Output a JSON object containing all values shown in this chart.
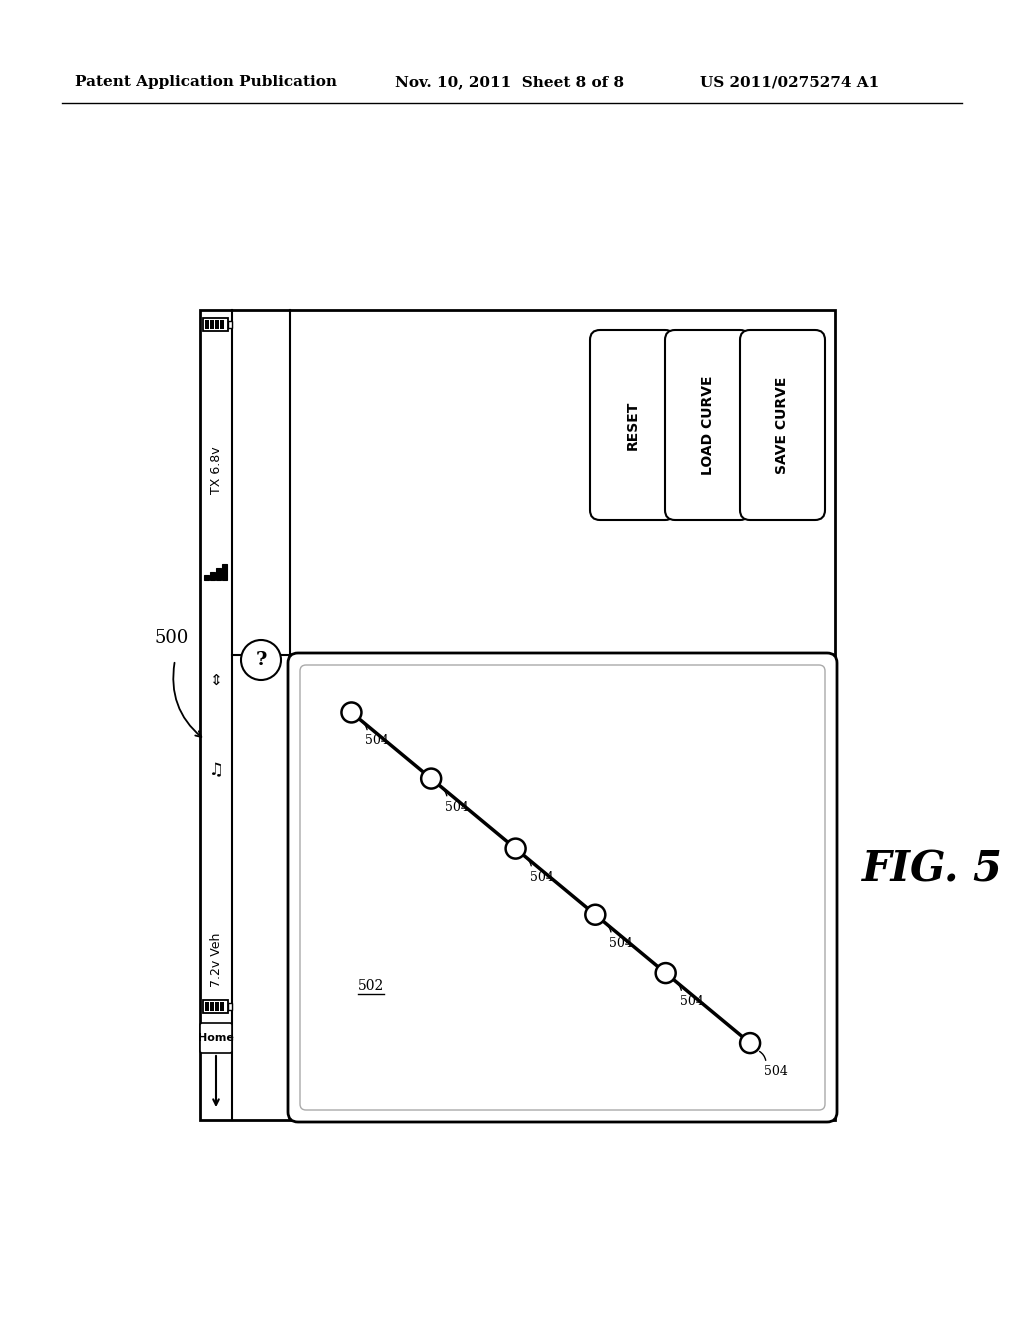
{
  "bg_color": "#ffffff",
  "header_text_left": "Patent Application Publication",
  "header_text_mid": "Nov. 10, 2011  Sheet 8 of 8",
  "header_text_right": "US 2011/0275274 A1",
  "fig_label": "FIG. 5",
  "device_label": "500",
  "button_labels": [
    "RESET",
    "LOAD CURVE",
    "SAVE CURVE"
  ],
  "curve_label": "502",
  "point_label": "504",
  "sidebar_label_top": "TX 6.8v",
  "sidebar_label_bottom": "7.2v Veh",
  "sidebar_home": "Home"
}
